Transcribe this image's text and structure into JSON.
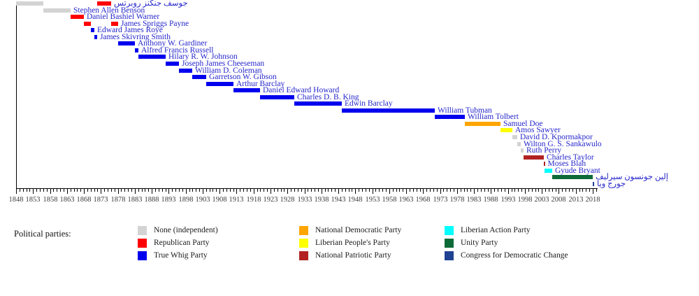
{
  "chart_data": {
    "type": "bar",
    "subtype": "gantt-timeline",
    "title": "",
    "xlabel": "",
    "grid": false,
    "x_axis": {
      "min": 1848,
      "max": 2019.5,
      "minor_step": 1,
      "major_step": 5,
      "tick_labels": [
        1848,
        1853,
        1858,
        1863,
        1868,
        1873,
        1878,
        1883,
        1888,
        1893,
        1898,
        1903,
        1908,
        1913,
        1918,
        1923,
        1928,
        1933,
        1938,
        1943,
        1948,
        1953,
        1958,
        1963,
        1968,
        1973,
        1978,
        1983,
        1988,
        1993,
        1998,
        2003,
        2008,
        2013,
        2018
      ]
    },
    "label_color": "#2626cb",
    "parties": {
      "none": {
        "label": "None (independent)",
        "color": "#d3d3d3"
      },
      "republican": {
        "label": "Republican Party",
        "color": "#ff0000"
      },
      "true_whig": {
        "label": "True Whig Party",
        "color": "#0000ee"
      },
      "ndpl": {
        "label": "National Democratic Party",
        "color": "#ffa500"
      },
      "lpp": {
        "label": "Liberian People's Party",
        "color": "#ffff00"
      },
      "npp": {
        "label": "National Patriotic Party",
        "color": "#b22222"
      },
      "lap": {
        "label": "Liberian Action Party",
        "color": "#00ffff"
      },
      "unity": {
        "label": "Unity Party",
        "color": "#0e6b38"
      },
      "cdc": {
        "label": "Congress for Democratic Change",
        "color": "#1f4293"
      }
    },
    "presidents": [
      {
        "name": "جوسف جنكنز روبرتس",
        "segments": [
          {
            "party": "none",
            "start": 1848,
            "end": 1856
          },
          {
            "party": "republican",
            "start": 1872,
            "end": 1876
          }
        ]
      },
      {
        "name": "Stephen Allen Benson",
        "segments": [
          {
            "party": "none",
            "start": 1856,
            "end": 1864
          }
        ]
      },
      {
        "name": "Daniel Bashiel Warner",
        "segments": [
          {
            "party": "republican",
            "start": 1864,
            "end": 1868
          }
        ]
      },
      {
        "name": "James Spriggs Payne",
        "segments": [
          {
            "party": "republican",
            "start": 1868,
            "end": 1870
          },
          {
            "party": "republican",
            "start": 1876,
            "end": 1878
          }
        ]
      },
      {
        "name": "Edward James Roye",
        "segments": [
          {
            "party": "true_whig",
            "start": 1870,
            "end": 1871
          }
        ]
      },
      {
        "name": "James Skivring Smith",
        "segments": [
          {
            "party": "true_whig",
            "start": 1871,
            "end": 1872
          }
        ]
      },
      {
        "name": "Anthony W. Gardiner",
        "segments": [
          {
            "party": "true_whig",
            "start": 1878,
            "end": 1883
          }
        ]
      },
      {
        "name": "Alfred Francis Russell",
        "segments": [
          {
            "party": "true_whig",
            "start": 1883,
            "end": 1884
          }
        ]
      },
      {
        "name": "Hilary R. W. Johnson",
        "segments": [
          {
            "party": "true_whig",
            "start": 1884,
            "end": 1892
          }
        ]
      },
      {
        "name": "Joseph James Cheeseman",
        "segments": [
          {
            "party": "true_whig",
            "start": 1892,
            "end": 1896
          }
        ]
      },
      {
        "name": "William D. Coleman",
        "segments": [
          {
            "party": "true_whig",
            "start": 1896,
            "end": 1900
          }
        ]
      },
      {
        "name": "Garretson W. Gibson",
        "segments": [
          {
            "party": "true_whig",
            "start": 1900,
            "end": 1904
          }
        ]
      },
      {
        "name": "Arthur Barclay",
        "segments": [
          {
            "party": "true_whig",
            "start": 1904,
            "end": 1912
          }
        ]
      },
      {
        "name": "Daniel Edward Howard",
        "segments": [
          {
            "party": "true_whig",
            "start": 1912,
            "end": 1920
          }
        ]
      },
      {
        "name": "Charles D. B. King",
        "segments": [
          {
            "party": "true_whig",
            "start": 1920,
            "end": 1930
          }
        ]
      },
      {
        "name": "Edwin Barclay",
        "segments": [
          {
            "party": "true_whig",
            "start": 1930,
            "end": 1944
          }
        ]
      },
      {
        "name": "William Tubman",
        "segments": [
          {
            "party": "true_whig",
            "start": 1944,
            "end": 1971.5
          }
        ]
      },
      {
        "name": "William Tolbert",
        "segments": [
          {
            "party": "true_whig",
            "start": 1971.5,
            "end": 1980.3
          }
        ]
      },
      {
        "name": "Samuel Doe",
        "segments": [
          {
            "party": "ndpl",
            "start": 1980.3,
            "end": 1990.7
          }
        ]
      },
      {
        "name": "Amos Sawyer",
        "segments": [
          {
            "party": "lpp",
            "start": 1990.9,
            "end": 1994.2
          }
        ]
      },
      {
        "name": "David D. Kpormakpor",
        "segments": [
          {
            "party": "none",
            "start": 1994.2,
            "end": 1995.7
          }
        ]
      },
      {
        "name": "Wilton G. S. Sankawulo",
        "segments": [
          {
            "party": "none",
            "start": 1995.7,
            "end": 1996.7
          }
        ]
      },
      {
        "name": "Ruth Perry",
        "segments": [
          {
            "party": "none",
            "start": 1996.7,
            "end": 1997.6
          }
        ]
      },
      {
        "name": "Charles Taylor",
        "segments": [
          {
            "party": "npp",
            "start": 1997.6,
            "end": 2003.6
          }
        ]
      },
      {
        "name": "Moses Blah",
        "segments": [
          {
            "party": "npp",
            "start": 2003.6,
            "end": 2003.8
          }
        ]
      },
      {
        "name": "Gyude Bryant",
        "segments": [
          {
            "party": "lap",
            "start": 2003.8,
            "end": 2006.0
          }
        ]
      },
      {
        "name": "إلين جونسون سيرليف",
        "segments": [
          {
            "party": "unity",
            "start": 2006.0,
            "end": 2018.05
          }
        ]
      },
      {
        "name": "جورج ويا",
        "segments": [
          {
            "party": "cdc",
            "start": 2018.05,
            "end": 2018.45
          }
        ]
      }
    ],
    "legend": {
      "title": "Political parties:",
      "columns": [
        [
          "none",
          "republican",
          "true_whig"
        ],
        [
          "ndpl",
          "lpp",
          "npp"
        ],
        [
          "lap",
          "unity",
          "cdc"
        ]
      ],
      "legend_position": "bottom"
    }
  }
}
